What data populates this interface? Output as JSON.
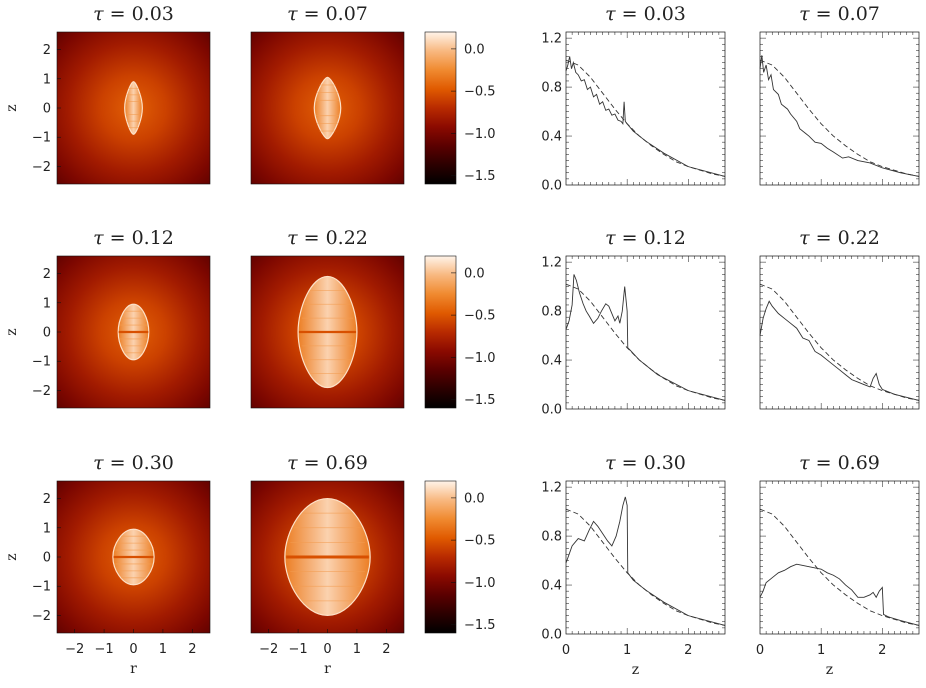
{
  "figure": {
    "tau_prefix": "τ",
    "tau_equals": "=",
    "colorbar_ticks": [
      "0.0",
      "−0.5",
      "−1.0",
      "−1.5"
    ],
    "colors": {
      "cmap": [
        "#000000",
        "#2b0000",
        "#5a0000",
        "#8b0a00",
        "#b82a00",
        "#e05a00",
        "#f08a30",
        "#f8b880",
        "#fff4ea"
      ],
      "line": "#333333"
    }
  },
  "chart_data": [
    {
      "type": "heatmap",
      "panel": "density maps",
      "description_vars": {
        "x": "r",
        "y": "z"
      },
      "xlabel": "r",
      "ylabel": "z",
      "x_range": [
        -2.6,
        2.6
      ],
      "y_range": [
        -2.6,
        2.6
      ],
      "x_ticks": [
        "−2",
        "−1",
        "0",
        "1",
        "2"
      ],
      "y_ticks": [
        "2",
        "1",
        "0",
        "−1",
        "−2"
      ],
      "colorbar": {
        "range": [
          -1.6,
          0.2
        ],
        "ticks": [
          0.0,
          -0.5,
          -1.0,
          -1.5
        ]
      },
      "panels": [
        {
          "tau": "0.03",
          "core_half_width": 0.3,
          "core_half_height": 0.9
        },
        {
          "tau": "0.07",
          "core_half_width": 0.45,
          "core_half_height": 1.05
        },
        {
          "tau": "0.12",
          "core_half_width": 0.52,
          "core_half_height": 0.95
        },
        {
          "tau": "0.22",
          "core_half_width": 1.0,
          "core_half_height": 1.9
        },
        {
          "tau": "0.30",
          "core_half_width": 0.7,
          "core_half_height": 0.95
        },
        {
          "tau": "0.69",
          "core_half_width": 1.45,
          "core_half_height": 2.0
        }
      ]
    },
    {
      "type": "line",
      "panel": "profiles along z",
      "xlabel": "z",
      "ylabel": "",
      "xlim": [
        0,
        2.6
      ],
      "ylim": [
        0,
        1.25
      ],
      "x_ticks": [
        "0",
        "1",
        "2"
      ],
      "y_ticks": [
        "1.2",
        "0.8",
        "0.4",
        "0.0"
      ],
      "reference_curve": {
        "style": "dashed",
        "z": [
          0,
          0.2,
          0.4,
          0.6,
          0.8,
          1.0,
          1.2,
          1.4,
          1.6,
          1.8,
          2.0,
          2.2,
          2.4,
          2.6
        ],
        "y": [
          1.02,
          0.98,
          0.88,
          0.75,
          0.62,
          0.5,
          0.4,
          0.32,
          0.25,
          0.19,
          0.15,
          0.12,
          0.09,
          0.07
        ]
      },
      "series": [
        {
          "tau": "0.03",
          "z": [
            0,
            0.03,
            0.06,
            0.09,
            0.12,
            0.16,
            0.2,
            0.25,
            0.3,
            0.35,
            0.4,
            0.45,
            0.5,
            0.55,
            0.6,
            0.65,
            0.7,
            0.75,
            0.8,
            0.85,
            0.9,
            0.93,
            0.95,
            0.97,
            1.0,
            1.1,
            1.3,
            1.6,
            2.0,
            2.6
          ],
          "y": [
            0.93,
            0.98,
            1.05,
            0.95,
            1.0,
            0.92,
            0.9,
            0.85,
            0.86,
            0.78,
            0.8,
            0.72,
            0.74,
            0.66,
            0.68,
            0.61,
            0.62,
            0.57,
            0.58,
            0.53,
            0.52,
            0.5,
            0.68,
            0.52,
            0.5,
            0.44,
            0.36,
            0.26,
            0.15,
            0.07
          ]
        },
        {
          "tau": "0.07",
          "z": [
            0,
            0.03,
            0.06,
            0.1,
            0.14,
            0.18,
            0.22,
            0.3,
            0.35,
            0.45,
            0.5,
            0.6,
            0.65,
            0.75,
            0.8,
            0.9,
            1.0,
            1.1,
            1.2,
            1.35,
            1.45,
            1.6,
            1.8,
            2.0,
            2.3,
            2.6
          ],
          "y": [
            0.95,
            1.06,
            0.92,
            0.98,
            0.86,
            0.9,
            0.78,
            0.74,
            0.66,
            0.62,
            0.58,
            0.52,
            0.46,
            0.42,
            0.4,
            0.35,
            0.34,
            0.3,
            0.27,
            0.22,
            0.23,
            0.2,
            0.18,
            0.14,
            0.1,
            0.07
          ]
        },
        {
          "tau": "0.12",
          "z": [
            0,
            0.05,
            0.1,
            0.13,
            0.17,
            0.22,
            0.28,
            0.33,
            0.38,
            0.45,
            0.52,
            0.58,
            0.65,
            0.7,
            0.75,
            0.8,
            0.85,
            0.88,
            0.92,
            0.96,
            0.98,
            1.0,
            1.01,
            1.05,
            1.2,
            1.5,
            2.0,
            2.6
          ],
          "y": [
            0.65,
            0.72,
            0.85,
            1.1,
            1.05,
            0.95,
            0.86,
            0.8,
            0.76,
            0.7,
            0.74,
            0.8,
            0.86,
            0.84,
            0.78,
            0.72,
            0.76,
            0.7,
            0.8,
            1.0,
            0.9,
            0.8,
            0.5,
            0.48,
            0.4,
            0.28,
            0.15,
            0.07
          ]
        },
        {
          "tau": "0.22",
          "z": [
            0,
            0.05,
            0.1,
            0.15,
            0.2,
            0.3,
            0.4,
            0.5,
            0.6,
            0.7,
            0.8,
            0.9,
            1.0,
            1.1,
            1.2,
            1.3,
            1.4,
            1.5,
            1.6,
            1.7,
            1.8,
            1.85,
            1.9,
            1.95,
            2.0,
            2.2,
            2.6
          ],
          "y": [
            0.6,
            0.74,
            0.82,
            0.88,
            0.84,
            0.78,
            0.74,
            0.7,
            0.66,
            0.58,
            0.56,
            0.47,
            0.44,
            0.4,
            0.36,
            0.32,
            0.28,
            0.24,
            0.22,
            0.2,
            0.18,
            0.25,
            0.29,
            0.2,
            0.16,
            0.12,
            0.07
          ]
        },
        {
          "tau": "0.30",
          "z": [
            0,
            0.05,
            0.1,
            0.2,
            0.3,
            0.38,
            0.45,
            0.52,
            0.6,
            0.68,
            0.75,
            0.82,
            0.88,
            0.93,
            0.97,
            1.0,
            1.01,
            1.1,
            1.3,
            1.6,
            2.0,
            2.6
          ],
          "y": [
            0.58,
            0.65,
            0.72,
            0.78,
            0.76,
            0.85,
            0.92,
            0.88,
            0.82,
            0.76,
            0.72,
            0.8,
            0.92,
            1.05,
            1.12,
            1.05,
            0.5,
            0.44,
            0.36,
            0.26,
            0.15,
            0.07
          ]
        },
        {
          "tau": "0.69",
          "z": [
            0,
            0.05,
            0.1,
            0.2,
            0.3,
            0.4,
            0.5,
            0.6,
            0.7,
            0.8,
            0.9,
            1.0,
            1.1,
            1.2,
            1.3,
            1.4,
            1.5,
            1.6,
            1.7,
            1.8,
            1.85,
            1.9,
            1.95,
            2.0,
            2.02,
            2.1,
            2.3,
            2.6
          ],
          "y": [
            0.3,
            0.35,
            0.42,
            0.46,
            0.5,
            0.52,
            0.55,
            0.57,
            0.56,
            0.55,
            0.54,
            0.53,
            0.5,
            0.48,
            0.45,
            0.4,
            0.36,
            0.3,
            0.3,
            0.32,
            0.34,
            0.3,
            0.35,
            0.38,
            0.16,
            0.14,
            0.11,
            0.07
          ]
        }
      ]
    }
  ]
}
